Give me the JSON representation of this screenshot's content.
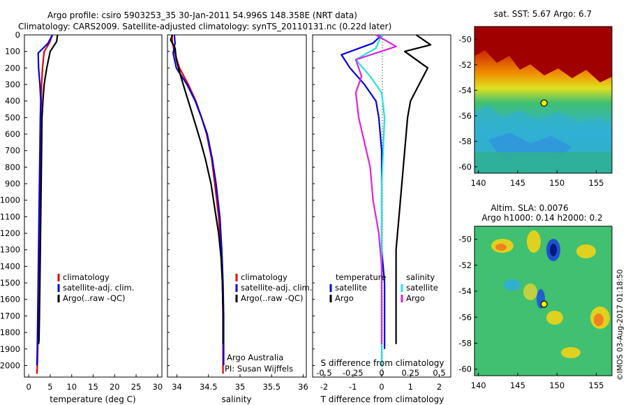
{
  "title_line1": "Argo profile: csiro 5903253_35 30-Jan-2011 54.996S 148.358E (NRT data)",
  "title_line2": "Climatology: CARS2009. Satellite-adjusted climatology: synTS_20110131.nc (0.22d later)",
  "footer_text": "Argo Australia",
  "footer_pi": "PI: Susan Wijffels",
  "watermark": "©IMOS 03-Aug-2017 01:18:50",
  "colors": {
    "climatology": "#e00000",
    "satellite": "#0000e0",
    "argo": "#000000",
    "sal_satellite": "#22e0e0",
    "sal_argo": "#e020e0"
  },
  "chart_data": [
    {
      "type": "line",
      "xlabel": "temperature (deg C)",
      "ylabel": "",
      "xlim": [
        -1,
        31
      ],
      "ylim": [
        2070,
        0
      ],
      "xticks": [
        "0",
        "5",
        "10",
        "15",
        "20",
        "25",
        "30"
      ],
      "yticks": [
        "0",
        "100",
        "200",
        "300",
        "400",
        "500",
        "600",
        "700",
        "800",
        "900",
        "1000",
        "1100",
        "1200",
        "1300",
        "1400",
        "1500",
        "1600",
        "1700",
        "1800",
        "1900",
        "2000"
      ],
      "legend": [
        "climatology",
        "satellite-adj. clim.",
        "Argo(..raw -QC)"
      ],
      "series": [
        {
          "name": "climatology",
          "x": [
            5.5,
            4.8,
            3.6,
            3.2,
            3.0,
            2.9,
            2.8,
            2.7,
            2.6,
            2.5,
            2.4,
            2.3,
            2.2,
            2.1,
            2.0,
            1.9
          ],
          "y": [
            0,
            50,
            100,
            200,
            300,
            400,
            500,
            700,
            900,
            1100,
            1300,
            1500,
            1700,
            1900,
            2000,
            2050
          ]
        },
        {
          "name": "satellite-adj. clim.",
          "x": [
            5.5,
            4.5,
            2.2,
            2.3,
            2.6,
            2.8,
            2.7,
            2.6,
            2.5,
            2.4,
            2.3,
            2.2,
            2.1,
            2.0,
            1.9
          ],
          "y": [
            0,
            50,
            110,
            200,
            300,
            400,
            500,
            700,
            900,
            1100,
            1300,
            1500,
            1700,
            1900,
            2000
          ]
        },
        {
          "name": "Argo(..raw -QC)",
          "x": [
            6.7,
            6.5,
            5.0,
            4.2,
            3.6,
            3.3,
            3.1,
            3.0,
            2.9,
            2.8,
            2.7,
            2.6,
            2.5,
            2.4,
            2.3
          ],
          "y": [
            0,
            40,
            100,
            200,
            300,
            400,
            500,
            700,
            900,
            1100,
            1300,
            1500,
            1700,
            1850,
            1870
          ]
        }
      ]
    },
    {
      "type": "line",
      "xlabel": "salinity",
      "xlim": [
        33.85,
        36.05
      ],
      "ylim": [
        2070,
        0
      ],
      "xticks": [
        "34",
        "34.5",
        "35",
        "35.5",
        "36"
      ],
      "legend": [
        "climatology",
        "satellite-adj. clim.",
        "Argo(..raw -QC)"
      ],
      "series": [
        {
          "name": "climatology",
          "x": [
            33.92,
            33.93,
            33.96,
            34.04,
            34.18,
            34.3,
            34.39,
            34.47,
            34.55,
            34.6,
            34.66,
            34.7,
            34.72,
            34.73,
            34.73,
            34.73
          ],
          "y": [
            0,
            50,
            100,
            200,
            300,
            400,
            500,
            600,
            750,
            900,
            1100,
            1300,
            1500,
            1700,
            1900,
            2050
          ]
        },
        {
          "name": "satellite-adj. clim.",
          "x": [
            33.96,
            33.97,
            33.94,
            33.99,
            34.16,
            34.29,
            34.39,
            34.48,
            34.56,
            34.62,
            34.68,
            34.71,
            34.73,
            34.74,
            34.74
          ],
          "y": [
            0,
            50,
            110,
            200,
            300,
            400,
            500,
            600,
            750,
            900,
            1100,
            1300,
            1500,
            1700,
            2000
          ]
        },
        {
          "name": "Argo(..raw -QC)",
          "x": [
            33.93,
            33.9,
            33.97,
            33.99,
            34.06,
            34.14,
            34.22,
            34.3,
            34.38,
            34.45,
            34.54,
            34.6,
            34.66,
            34.7,
            34.72,
            34.73,
            34.73
          ],
          "y": [
            0,
            30,
            80,
            150,
            250,
            350,
            450,
            550,
            650,
            750,
            900,
            1050,
            1200,
            1350,
            1500,
            1650,
            1870
          ]
        }
      ]
    },
    {
      "type": "line",
      "xlabel": "T difference from climatology",
      "xlabel_top": "S difference from climatology",
      "xlim": [
        -2.4,
        2.4
      ],
      "ylim": [
        2070,
        0
      ],
      "xticks": [
        "-2",
        "-1",
        "0",
        "1",
        "2"
      ],
      "xticks_top": [
        "-0.5",
        "-0.25",
        "0",
        "0.25",
        "0.5"
      ],
      "legend_temperature_title": "temperature",
      "legend_salinity_title": "salinity",
      "legend_temperature": [
        "satellite",
        "Argo"
      ],
      "legend_salinity": [
        "satellite",
        "Argo"
      ],
      "series": [
        {
          "name": "satellite",
          "x": [
            0.0,
            -0.3,
            -1.4,
            -1.1,
            -0.6,
            -0.2,
            -0.1,
            0.0,
            0.0,
            0.0,
            0.0,
            0.1,
            0.1,
            0.1
          ],
          "y": [
            0,
            50,
            120,
            200,
            300,
            400,
            500,
            700,
            900,
            1100,
            1300,
            1500,
            1700,
            1900
          ]
        },
        {
          "name": "Argo",
          "x": [
            1.2,
            1.7,
            0.8,
            1.6,
            1.3,
            1.0,
            0.9,
            0.8,
            0.7,
            0.6,
            0.5,
            0.5,
            0.5,
            0.5,
            0.5
          ],
          "y": [
            0,
            60,
            100,
            200,
            300,
            400,
            500,
            700,
            900,
            1100,
            1300,
            1500,
            1700,
            1800,
            1870
          ]
        },
        {
          "name": "sal satellite",
          "x": [
            0.0,
            -0.2,
            -0.9,
            -0.4,
            0.0,
            0.1,
            0.05,
            0.0,
            0.0,
            0.0,
            0.0,
            0.0
          ],
          "y": [
            0,
            80,
            150,
            250,
            350,
            500,
            700,
            900,
            1200,
            1500,
            1800,
            2000
          ]
        },
        {
          "name": "sal Argo",
          "x": [
            -0.2,
            0.5,
            -0.9,
            -0.7,
            -0.9,
            -0.8,
            -0.6,
            -0.4,
            -0.3,
            -0.1,
            0.0,
            0.0,
            0.0
          ],
          "y": [
            0,
            70,
            150,
            250,
            350,
            500,
            650,
            800,
            1000,
            1200,
            1400,
            1600,
            1870
          ]
        }
      ]
    },
    {
      "type": "heatmap",
      "title": "sat. SST: 5.67 Argo: 6.7",
      "xlim": [
        139.5,
        157
      ],
      "ylim": [
        -60.5,
        -49
      ],
      "xticks": [
        "140",
        "145",
        "150",
        "155"
      ],
      "yticks": [
        "-50",
        "-52",
        "-54",
        "-56",
        "-58",
        "-60"
      ],
      "marker": {
        "x": 148.36,
        "y": -55.0
      }
    },
    {
      "type": "heatmap",
      "title": "Altim. SLA: 0.0076",
      "subtitle": "Argo h1000: 0.14 h2000: 0.2",
      "xlim": [
        139.5,
        157
      ],
      "ylim": [
        -60.5,
        -49
      ],
      "xticks": [
        "140",
        "145",
        "150",
        "155"
      ],
      "yticks": [
        "-50",
        "-52",
        "-54",
        "-56",
        "-58",
        "-60"
      ],
      "marker": {
        "x": 148.36,
        "y": -55.0
      }
    }
  ]
}
